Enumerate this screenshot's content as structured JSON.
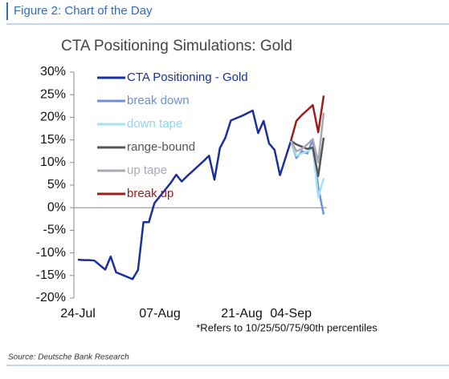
{
  "header": "Figure 2: Chart of the Day",
  "source": "Source: Deutsche Bank Research",
  "chart_data": {
    "type": "line",
    "title": "CTA Positioning Simulations: Gold",
    "footnote": "*Refers to 10/25/50/75/90th percentiles",
    "categories": [
      "24-Jul",
      null,
      null,
      null,
      null,
      null,
      null,
      null,
      null,
      null,
      null,
      null,
      null,
      null,
      null,
      "07-Aug",
      null,
      null,
      null,
      null,
      null,
      null,
      null,
      null,
      null,
      null,
      null,
      null,
      null,
      null,
      "21-Aug",
      null,
      null,
      null,
      null,
      null,
      null,
      null,
      null,
      "04-Sep",
      null,
      null,
      null,
      null,
      null,
      null
    ],
    "ylim": [
      -20,
      30
    ],
    "yticks": [
      {
        "value": -20,
        "label": "-20%"
      },
      {
        "value": -15,
        "label": "-15%"
      },
      {
        "value": -10,
        "label": "-10%"
      },
      {
        "value": -5,
        "label": "-5%"
      },
      {
        "value": 0,
        "label": "0%"
      },
      {
        "value": 5,
        "label": "5%"
      },
      {
        "value": 10,
        "label": "10%"
      },
      {
        "value": 15,
        "label": "15%"
      },
      {
        "value": 20,
        "label": "20%"
      },
      {
        "value": 25,
        "label": "25%"
      },
      {
        "value": 30,
        "label": "30%"
      }
    ],
    "series": [
      {
        "name": "CTA Positioning - Gold",
        "color": "#1a2f9c",
        "values": [
          -11.5,
          -11.6,
          -11.6,
          -11.7,
          -12.7,
          -13.7,
          -10.8,
          -14.3,
          -14.8,
          -15.3,
          -15.8,
          -13.8,
          -3.2,
          -3.2,
          1.0,
          2.5,
          4.0,
          5.5,
          7.3,
          5.8,
          7.0,
          8.1,
          9.2,
          10.3,
          11.5,
          6.2,
          13.2,
          15.5,
          19.3,
          19.8,
          20.3,
          20.9,
          21.5,
          16.5,
          19.2,
          14.2,
          12.8,
          7.2,
          11.0,
          14.8,
          null,
          null,
          null,
          null,
          null,
          null
        ]
      },
      {
        "name": "break down",
        "color": "#6f8fd8",
        "values": [
          null,
          null,
          null,
          null,
          null,
          null,
          null,
          null,
          null,
          null,
          null,
          null,
          null,
          null,
          null,
          null,
          null,
          null,
          null,
          null,
          null,
          null,
          null,
          null,
          null,
          null,
          null,
          null,
          null,
          null,
          null,
          null,
          null,
          null,
          null,
          null,
          null,
          null,
          null,
          14.8,
          11.0,
          12.5,
          12.0,
          15.0,
          4.5,
          -1.5
        ]
      },
      {
        "name": "down tape",
        "color": "#a8e0f5",
        "values": [
          null,
          null,
          null,
          null,
          null,
          null,
          null,
          null,
          null,
          null,
          null,
          null,
          null,
          null,
          null,
          null,
          null,
          null,
          null,
          null,
          null,
          null,
          null,
          null,
          null,
          null,
          null,
          null,
          null,
          null,
          null,
          null,
          null,
          null,
          null,
          null,
          null,
          null,
          null,
          14.8,
          11.5,
          12.0,
          12.5,
          13.0,
          2.3,
          6.5
        ]
      },
      {
        "name": "range-bound",
        "color": "#555555",
        "values": [
          null,
          null,
          null,
          null,
          null,
          null,
          null,
          null,
          null,
          null,
          null,
          null,
          null,
          null,
          null,
          null,
          null,
          null,
          null,
          null,
          null,
          null,
          null,
          null,
          null,
          null,
          null,
          null,
          null,
          null,
          null,
          null,
          null,
          null,
          null,
          null,
          null,
          null,
          null,
          14.8,
          14.0,
          13.5,
          13.0,
          13.3,
          7.0,
          15.5
        ]
      },
      {
        "name": "up tape",
        "color": "#a9a9b5",
        "values": [
          null,
          null,
          null,
          null,
          null,
          null,
          null,
          null,
          null,
          null,
          null,
          null,
          null,
          null,
          null,
          null,
          null,
          null,
          null,
          null,
          null,
          null,
          null,
          null,
          null,
          null,
          null,
          null,
          null,
          null,
          null,
          null,
          null,
          null,
          null,
          null,
          null,
          null,
          null,
          14.8,
          12.5,
          13.0,
          14.0,
          15.2,
          10.0,
          21.0
        ]
      },
      {
        "name": "break up",
        "color": "#a01c1c",
        "values": [
          null,
          null,
          null,
          null,
          null,
          null,
          null,
          null,
          null,
          null,
          null,
          null,
          null,
          null,
          null,
          null,
          null,
          null,
          null,
          null,
          null,
          null,
          null,
          null,
          null,
          null,
          null,
          null,
          null,
          null,
          null,
          null,
          null,
          null,
          null,
          null,
          null,
          null,
          null,
          14.8,
          19.2,
          20.5,
          21.6,
          22.7,
          16.7,
          24.8
        ]
      }
    ]
  }
}
